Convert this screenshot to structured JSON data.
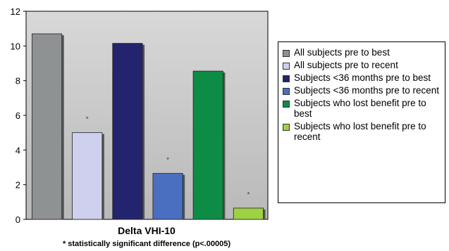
{
  "chart_data": {
    "type": "bar",
    "xlabel": "Delta VHI-10",
    "ylabel": "",
    "footnote": "* statistically significant difference (p<.00005)",
    "ylim": [
      0,
      12
    ],
    "yticks": [
      0,
      2,
      4,
      6,
      8,
      10,
      12
    ],
    "grid": false,
    "legend_position": "right",
    "series": [
      {
        "name": "All subjects  pre to best",
        "value": 10.7,
        "color": "#8f9293",
        "significant": false
      },
      {
        "name": "All subjects pre to recent",
        "value": 5.0,
        "color": "#cfd0ee",
        "significant": true
      },
      {
        "name": "Subjects <36 months pre to best",
        "value": 10.15,
        "color": "#23236e",
        "significant": false
      },
      {
        "name": "Subjects <36 months pre to recent",
        "value": 2.65,
        "color": "#4a6ec0",
        "significant": true
      },
      {
        "name": "Subjects who lost benefit pre to best",
        "value": 8.55,
        "color": "#0d8c45",
        "significant": false
      },
      {
        "name": "Subjects who lost benefit pre to recent",
        "value": 0.65,
        "color": "#9fd144",
        "significant": true
      }
    ]
  }
}
